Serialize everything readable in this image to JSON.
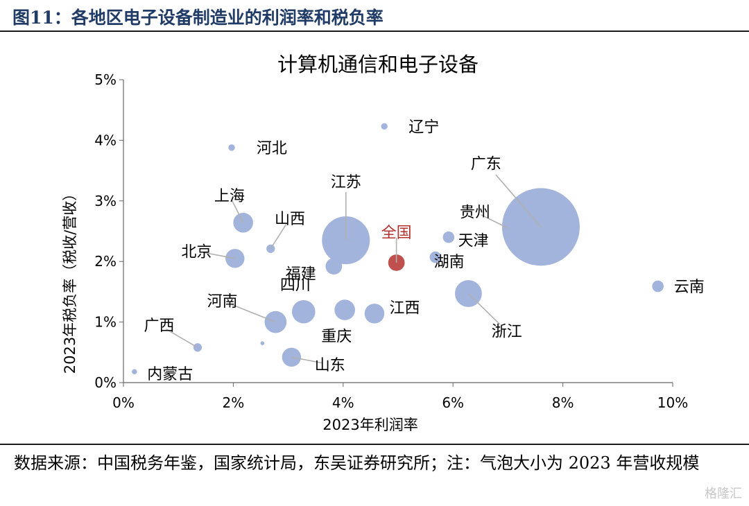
{
  "figure_title": "图11：各地区电子设备制造业的利润率和税负率",
  "source_note": "数据来源：中国税务年鉴，国家统计局，东吴证券研究所；注：气泡大小为 2023 年营收规模",
  "watermark": "格隆汇",
  "chart_data": {
    "type": "scatter",
    "title": "计算机通信和电子设备",
    "xlabel": "2023年利润率",
    "ylabel": "2023年税负率（税收/营收）",
    "xlim": [
      0,
      10
    ],
    "ylim": [
      0,
      5
    ],
    "x_ticks": [
      "0%",
      "2%",
      "4%",
      "6%",
      "8%",
      "10%"
    ],
    "y_ticks": [
      "0%",
      "1%",
      "2%",
      "3%",
      "4%",
      "5%"
    ],
    "unit": "%",
    "bubble_size_meaning": "2023 年营收规模",
    "colors": {
      "default": "#a2b3dc",
      "highlight": "#c0504d",
      "highlight_label": "#b4302a"
    },
    "points": [
      {
        "label": "广东",
        "x": 7.6,
        "y": 2.57,
        "size": 100,
        "highlight": false,
        "label_dx": -1,
        "label_dy": 1.05,
        "leader": true
      },
      {
        "label": "江苏",
        "x": 4.05,
        "y": 2.35,
        "size": 38,
        "highlight": false,
        "label_dx": 0.0,
        "label_dy": 0.97,
        "leader": true
      },
      {
        "label": "浙江",
        "x": 6.28,
        "y": 1.47,
        "size": 12,
        "highlight": false,
        "label_dx": 0.7,
        "label_dy": -0.62,
        "leader": true
      },
      {
        "label": "四川",
        "x": 3.28,
        "y": 1.17,
        "size": 9,
        "highlight": false,
        "label_dx": -0.15,
        "label_dy": 0.45,
        "leader": false
      },
      {
        "label": "河南",
        "x": 2.77,
        "y": 1.0,
        "size": 8,
        "highlight": false,
        "label_dx": -0.97,
        "label_dy": 0.35,
        "leader": true
      },
      {
        "label": "重庆",
        "x": 4.03,
        "y": 1.2,
        "size": 7,
        "highlight": false,
        "label_dx": -0.15,
        "label_dy": -0.43,
        "leader": false
      },
      {
        "label": "江西",
        "x": 4.57,
        "y": 1.14,
        "size": 6.5,
        "highlight": false,
        "label_dx": 0.55,
        "label_dy": 0.1,
        "leader": false
      },
      {
        "label": "上海",
        "x": 2.18,
        "y": 2.64,
        "size": 6.5,
        "highlight": false,
        "label_dx": -0.25,
        "label_dy": 0.45,
        "leader": true
      },
      {
        "label": "北京",
        "x": 2.03,
        "y": 2.05,
        "size": 6,
        "highlight": false,
        "label_dx": -0.7,
        "label_dy": 0.12,
        "leader": true
      },
      {
        "label": "山东",
        "x": 3.06,
        "y": 0.42,
        "size": 6,
        "highlight": false,
        "label_dx": 0.7,
        "label_dy": -0.12,
        "leader": true
      },
      {
        "label": "福建",
        "x": 3.83,
        "y": 1.92,
        "size": 4.5,
        "highlight": false,
        "label_dx": -0.6,
        "label_dy": -0.12,
        "leader": false
      },
      {
        "label": "全国",
        "x": 4.97,
        "y": 1.98,
        "size": 4.5,
        "highlight": true,
        "label_dx": 0.0,
        "label_dy": 0.5,
        "leader": true
      },
      {
        "label": "湖南",
        "x": 5.68,
        "y": 2.07,
        "size": 2.2,
        "highlight": false,
        "label_dx": 0.25,
        "label_dy": -0.07,
        "leader": false
      },
      {
        "label": "天津",
        "x": 5.92,
        "y": 2.4,
        "size": 2.2,
        "highlight": false,
        "label_dx": 0.45,
        "label_dy": -0.05,
        "leader": false
      },
      {
        "label": "云南",
        "x": 9.73,
        "y": 1.59,
        "size": 2.2,
        "highlight": false,
        "label_dx": 0.57,
        "label_dy": 0.0,
        "leader": false
      },
      {
        "label": "山西",
        "x": 2.68,
        "y": 2.21,
        "size": 1.2,
        "highlight": false,
        "label_dx": 0.35,
        "label_dy": 0.5,
        "leader": true
      },
      {
        "label": "广西",
        "x": 1.35,
        "y": 0.58,
        "size": 1.2,
        "highlight": false,
        "label_dx": -0.7,
        "label_dy": 0.37,
        "leader": true
      },
      {
        "label": "贵州",
        "x": 7.0,
        "y": 2.55,
        "size": 0.5,
        "highlight": false,
        "label_dx": -0.6,
        "label_dy": 0.27,
        "leader": true
      },
      {
        "label": "辽宁",
        "x": 4.75,
        "y": 4.23,
        "size": 0.7,
        "highlight": false,
        "label_dx": 0.72,
        "label_dy": 0.0,
        "leader": false
      },
      {
        "label": "河北",
        "x": 1.97,
        "y": 3.88,
        "size": 0.7,
        "highlight": false,
        "label_dx": 0.73,
        "label_dy": 0.0,
        "leader": false
      },
      {
        "label": "内蒙古",
        "x": 0.2,
        "y": 0.18,
        "size": 0.45,
        "highlight": false,
        "label_dx": 0.65,
        "label_dy": -0.03,
        "leader": false
      },
      {
        "label": "",
        "x": 2.53,
        "y": 0.65,
        "size": 0.25,
        "highlight": false,
        "label_dx": 0,
        "label_dy": 0,
        "leader": false
      }
    ]
  }
}
